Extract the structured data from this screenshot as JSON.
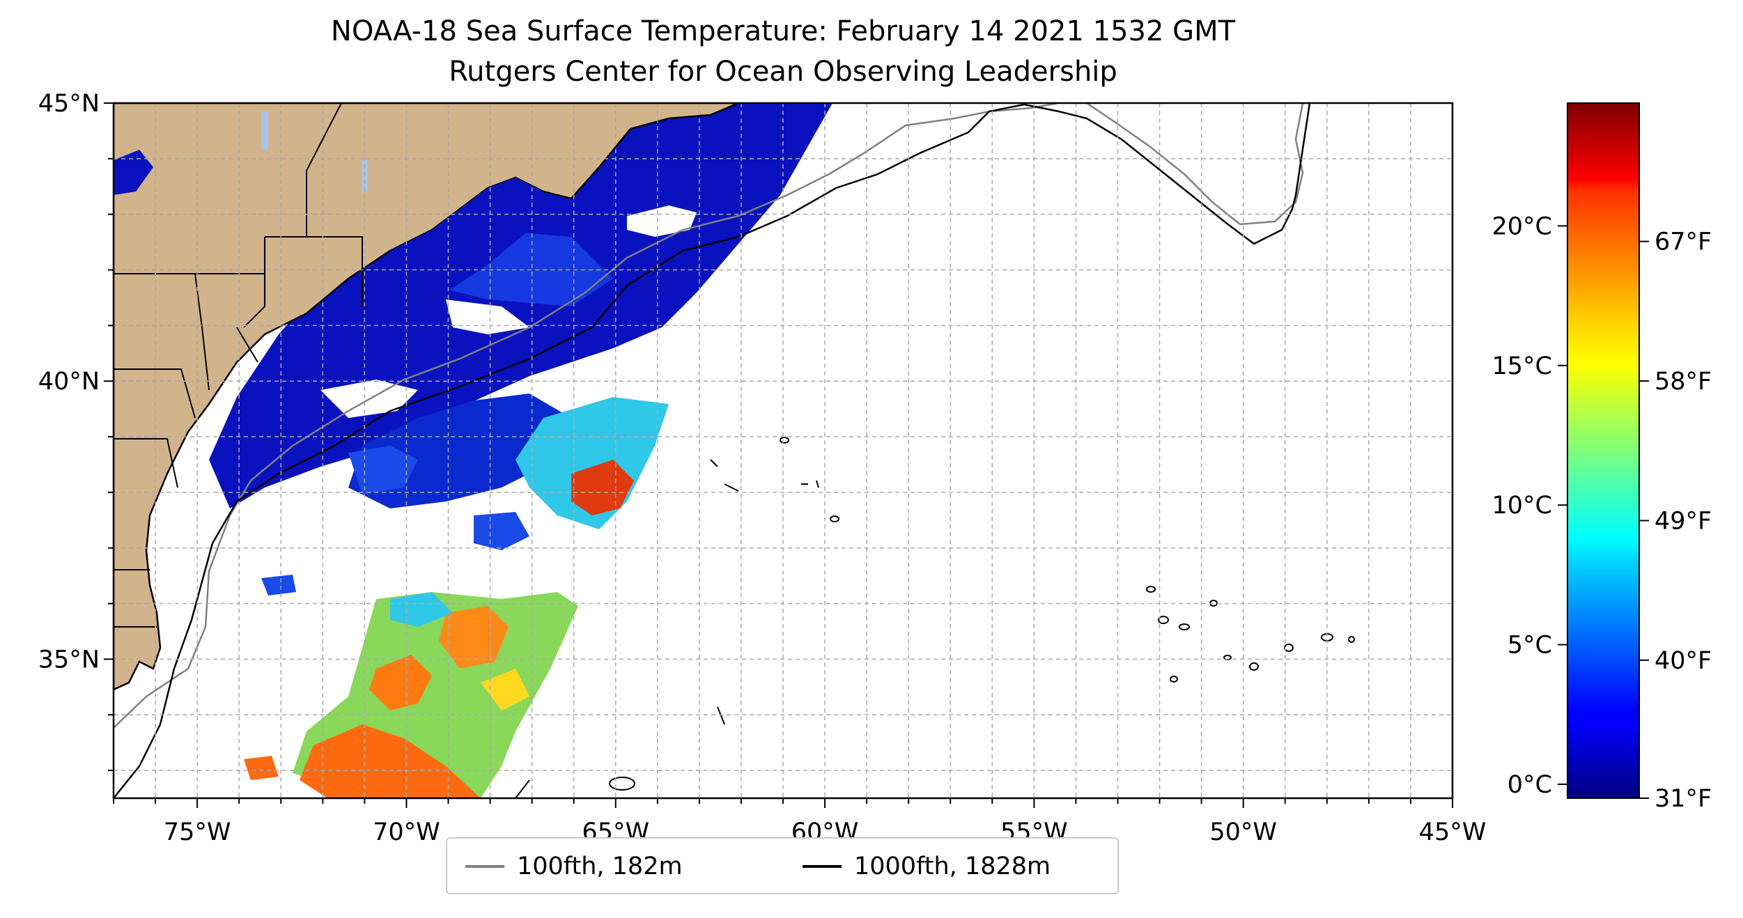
{
  "title": {
    "line1": "NOAA-18 Sea Surface Temperature: February 14 2021 1532 GMT",
    "line2": "Rutgers Center for Ocean Observing Leadership"
  },
  "map": {
    "lon_range": [
      -77,
      -45
    ],
    "lat_range": [
      32.5,
      45
    ],
    "lon_ticks": [
      "75°W",
      "70°W",
      "65°W",
      "60°W",
      "55°W",
      "50°W",
      "45°W"
    ],
    "lat_ticks": [
      "35°N",
      "40°N",
      "45°N"
    ],
    "grid": true,
    "land_color": "#d2b48c",
    "lake_color": "#a6c4ec"
  },
  "legend": {
    "items": [
      {
        "label": "100fth, 182m",
        "color": "#808080"
      },
      {
        "label": "1000fth, 1828m",
        "color": "#000000"
      }
    ]
  },
  "colorbar": {
    "colormap": "jet",
    "celsius_ticks": [
      "0°C",
      "5°C",
      "10°C",
      "15°C",
      "20°C"
    ],
    "fahrenheit_ticks": [
      "31°F",
      "40°F",
      "49°F",
      "58°F",
      "67°F"
    ],
    "range_c": [
      -0.5,
      24.4
    ]
  }
}
